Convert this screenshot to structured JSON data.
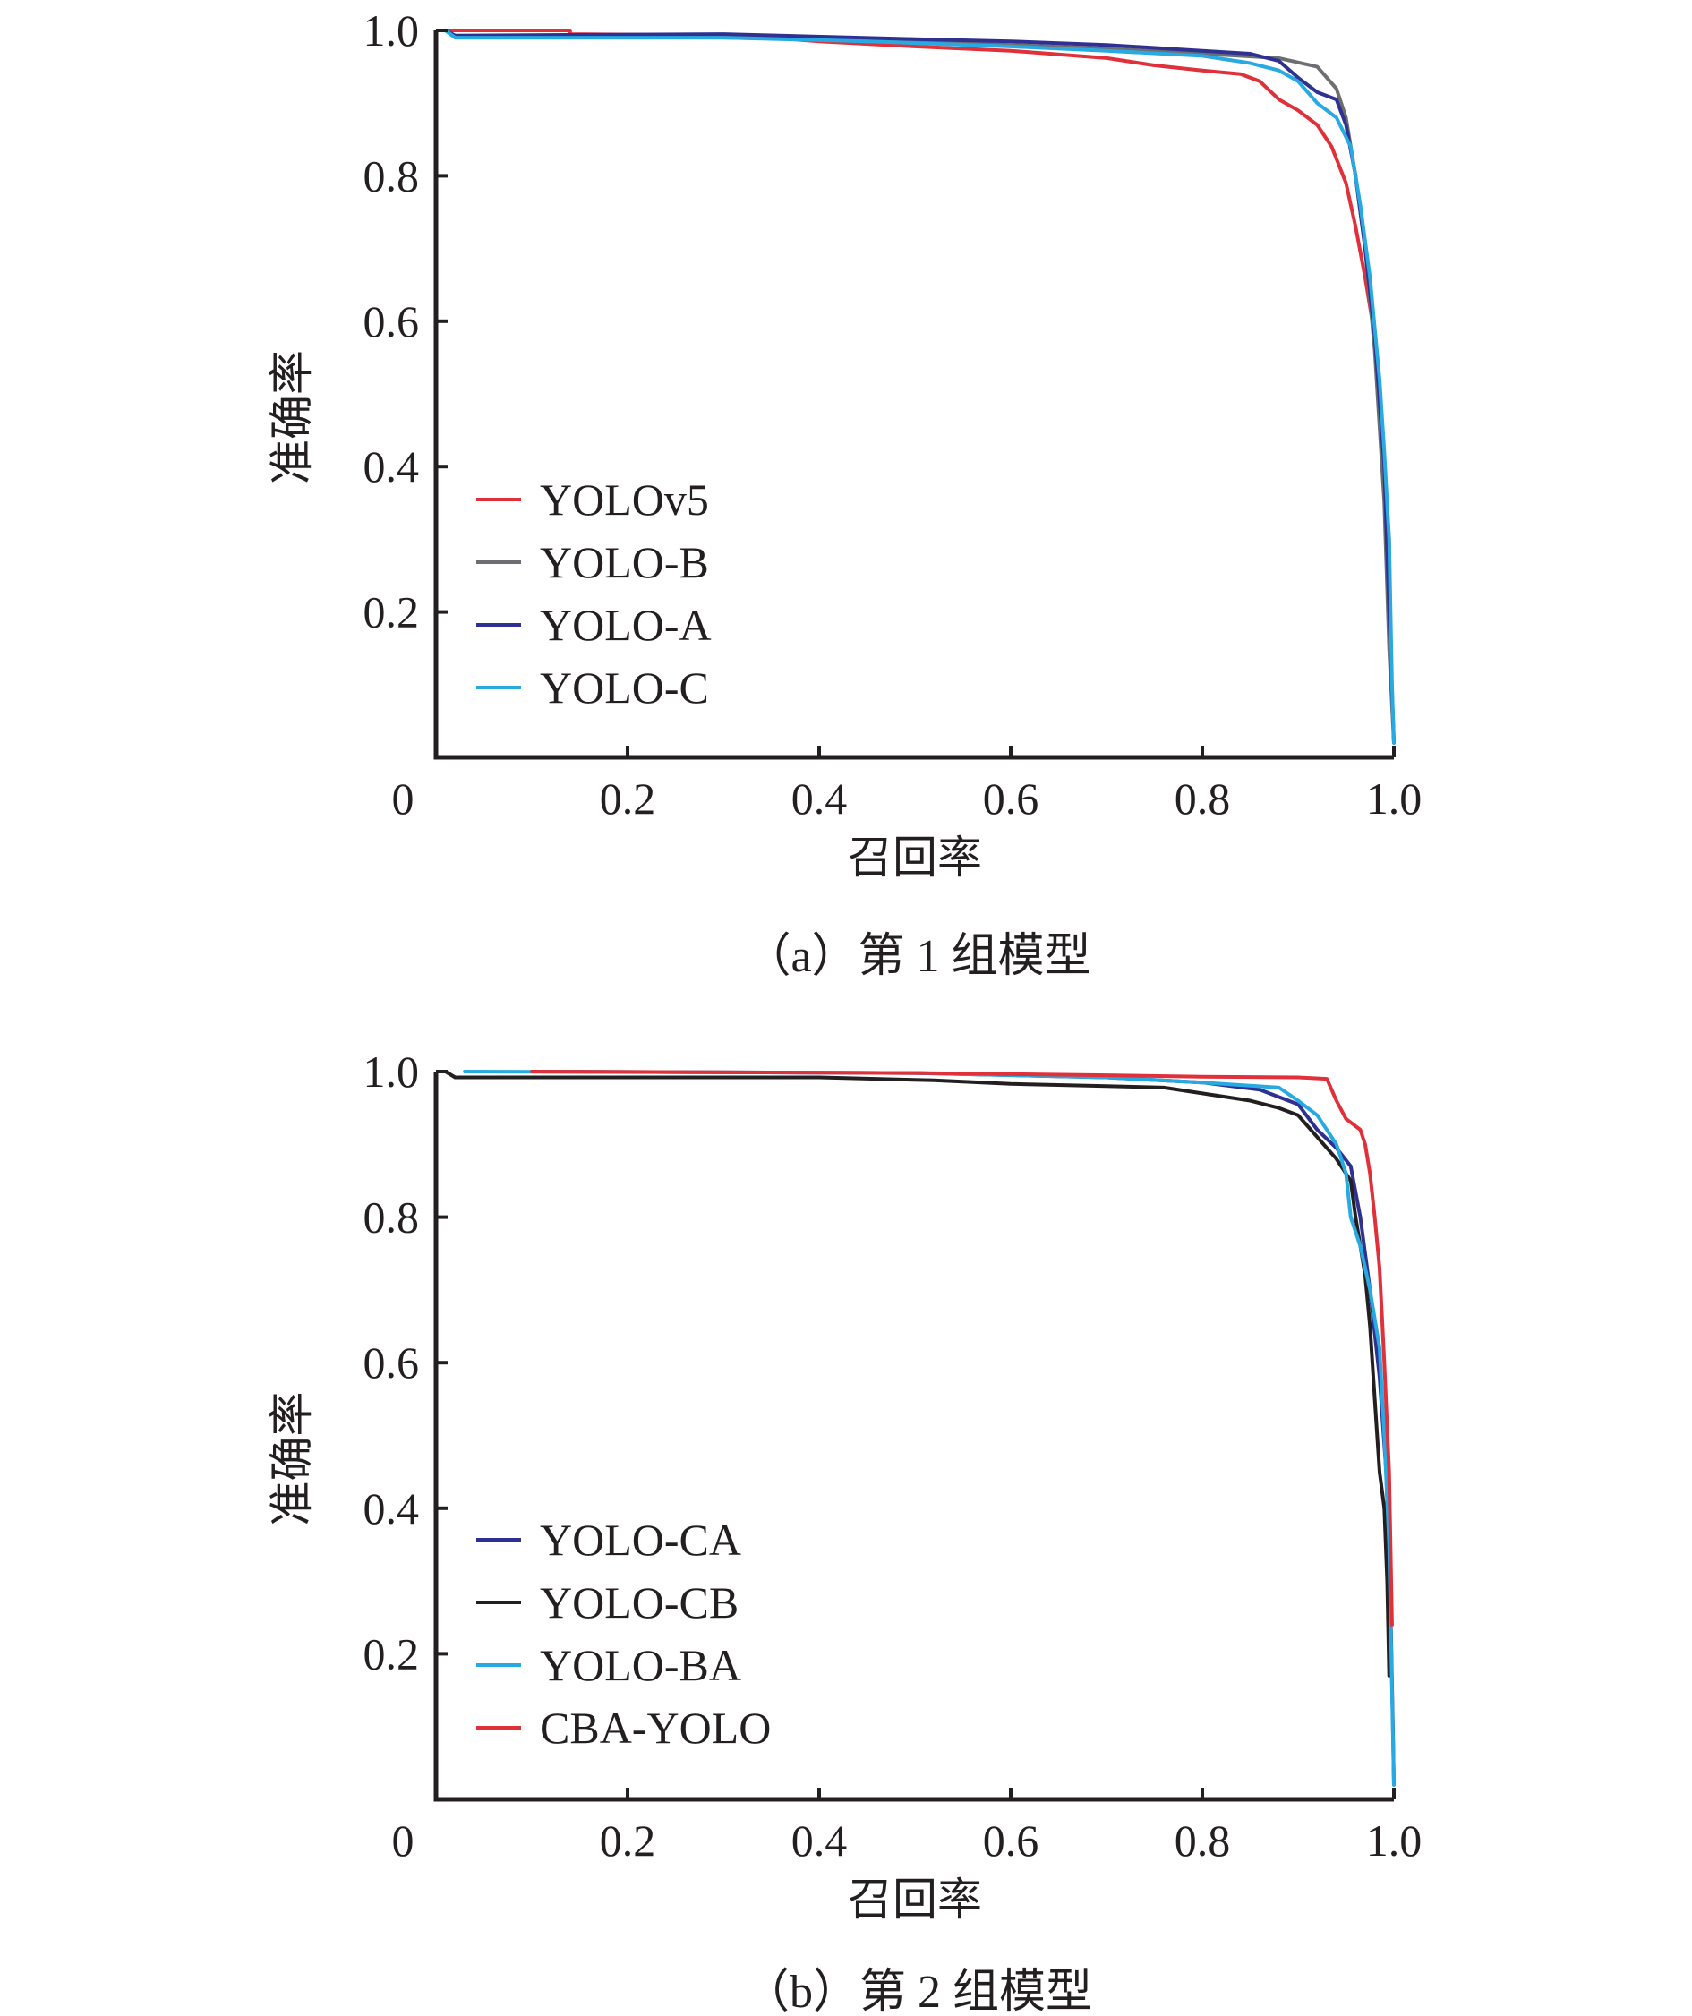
{
  "chart_data": [
    {
      "type": "line",
      "caption": "（a）第 1 组模型",
      "xlabel": "召回率",
      "ylabel": "准确率",
      "xlim": [
        0,
        1.0
      ],
      "ylim": [
        0,
        1.0
      ],
      "x_ticks": [
        0,
        0.2,
        0.4,
        0.6,
        0.8,
        1.0
      ],
      "x_tick_labels": [
        "0",
        "0.2",
        "0.4",
        "0.6",
        "0.8",
        "1.0"
      ],
      "y_ticks": [
        0.2,
        0.4,
        0.6,
        0.8,
        1.0
      ],
      "y_tick_labels": [
        "0.2",
        "0.4",
        "0.6",
        "0.8",
        "1.0"
      ],
      "legend": "left",
      "grid": false,
      "series": [
        {
          "name": "YOLOv5",
          "color": "#e0303a",
          "points": [
            [
              0.01,
              1.0
            ],
            [
              0.14,
              1.0
            ],
            [
              0.14,
              0.995
            ],
            [
              0.32,
              0.993
            ],
            [
              0.4,
              0.985
            ],
            [
              0.5,
              0.978
            ],
            [
              0.6,
              0.972
            ],
            [
              0.7,
              0.962
            ],
            [
              0.75,
              0.952
            ],
            [
              0.8,
              0.945
            ],
            [
              0.84,
              0.94
            ],
            [
              0.86,
              0.93
            ],
            [
              0.88,
              0.905
            ],
            [
              0.9,
              0.89
            ],
            [
              0.92,
              0.87
            ],
            [
              0.935,
              0.84
            ],
            [
              0.95,
              0.79
            ],
            [
              0.96,
              0.73
            ],
            [
              0.97,
              0.66
            ],
            [
              0.98,
              0.58
            ],
            [
              0.985,
              0.47
            ],
            [
              0.99,
              0.4
            ],
            [
              0.995,
              0.3
            ],
            [
              0.996,
              0.18
            ]
          ]
        },
        {
          "name": "YOLO-B",
          "color": "#6d6e71",
          "points": [
            [
              0.01,
              1.0
            ],
            [
              0.02,
              0.99
            ],
            [
              0.3,
              0.99
            ],
            [
              0.5,
              0.985
            ],
            [
              0.6,
              0.98
            ],
            [
              0.7,
              0.975
            ],
            [
              0.8,
              0.968
            ],
            [
              0.88,
              0.962
            ],
            [
              0.92,
              0.95
            ],
            [
              0.94,
              0.92
            ],
            [
              0.95,
              0.88
            ],
            [
              0.96,
              0.8
            ],
            [
              0.97,
              0.7
            ],
            [
              0.98,
              0.56
            ],
            [
              0.99,
              0.35
            ],
            [
              0.995,
              0.15
            ],
            [
              1.0,
              0.02
            ]
          ]
        },
        {
          "name": "YOLO-A",
          "color": "#2e3192",
          "points": [
            [
              0.01,
              1.0
            ],
            [
              0.02,
              0.993
            ],
            [
              0.3,
              0.995
            ],
            [
              0.5,
              0.988
            ],
            [
              0.6,
              0.985
            ],
            [
              0.7,
              0.98
            ],
            [
              0.8,
              0.972
            ],
            [
              0.85,
              0.968
            ],
            [
              0.88,
              0.958
            ],
            [
              0.9,
              0.935
            ],
            [
              0.92,
              0.915
            ],
            [
              0.94,
              0.905
            ],
            [
              0.95,
              0.87
            ],
            [
              0.96,
              0.8
            ],
            [
              0.97,
              0.7
            ],
            [
              0.98,
              0.58
            ],
            [
              0.99,
              0.4
            ],
            [
              0.995,
              0.2
            ],
            [
              1.0,
              0.02
            ]
          ]
        },
        {
          "name": "YOLO-C",
          "color": "#27aae1",
          "points": [
            [
              0.01,
              1.0
            ],
            [
              0.02,
              0.99
            ],
            [
              0.3,
              0.99
            ],
            [
              0.45,
              0.985
            ],
            [
              0.6,
              0.978
            ],
            [
              0.7,
              0.972
            ],
            [
              0.8,
              0.965
            ],
            [
              0.85,
              0.955
            ],
            [
              0.88,
              0.945
            ],
            [
              0.9,
              0.93
            ],
            [
              0.92,
              0.9
            ],
            [
              0.94,
              0.88
            ],
            [
              0.955,
              0.84
            ],
            [
              0.965,
              0.76
            ],
            [
              0.975,
              0.66
            ],
            [
              0.985,
              0.52
            ],
            [
              0.99,
              0.42
            ],
            [
              0.995,
              0.3
            ],
            [
              0.998,
              0.1
            ],
            [
              1.0,
              0.02
            ]
          ]
        }
      ]
    },
    {
      "type": "line",
      "caption": "（b）第 2 组模型",
      "xlabel": "召回率",
      "ylabel": "准确率",
      "xlim": [
        0,
        1.0
      ],
      "ylim": [
        0,
        1.0
      ],
      "x_ticks": [
        0,
        0.2,
        0.4,
        0.6,
        0.8,
        1.0
      ],
      "x_tick_labels": [
        "0",
        "0.2",
        "0.4",
        "0.6",
        "0.8",
        "1.0"
      ],
      "y_ticks": [
        0.2,
        0.4,
        0.6,
        0.8,
        1.0
      ],
      "y_tick_labels": [
        "0.2",
        "0.4",
        "0.6",
        "0.8",
        "1.0"
      ],
      "legend": "left",
      "grid": false,
      "series": [
        {
          "name": "YOLO-CA",
          "color": "#2e3192",
          "points": [
            [
              0.1,
              1.0
            ],
            [
              0.5,
              0.998
            ],
            [
              0.7,
              0.992
            ],
            [
              0.8,
              0.985
            ],
            [
              0.86,
              0.975
            ],
            [
              0.9,
              0.955
            ],
            [
              0.92,
              0.92
            ],
            [
              0.94,
              0.895
            ],
            [
              0.955,
              0.87
            ],
            [
              0.965,
              0.8
            ],
            [
              0.975,
              0.7
            ],
            [
              0.985,
              0.58
            ],
            [
              0.992,
              0.45
            ],
            [
              0.996,
              0.3
            ],
            [
              0.999,
              0.1
            ],
            [
              1.0,
              0.02
            ]
          ]
        },
        {
          "name": "YOLO-CB",
          "color": "#231f20",
          "points": [
            [
              0.01,
              1.0
            ],
            [
              0.02,
              0.992
            ],
            [
              0.4,
              0.992
            ],
            [
              0.52,
              0.988
            ],
            [
              0.6,
              0.983
            ],
            [
              0.7,
              0.98
            ],
            [
              0.76,
              0.978
            ],
            [
              0.8,
              0.97
            ],
            [
              0.85,
              0.96
            ],
            [
              0.88,
              0.95
            ],
            [
              0.9,
              0.94
            ],
            [
              0.92,
              0.91
            ],
            [
              0.94,
              0.88
            ],
            [
              0.955,
              0.85
            ],
            [
              0.96,
              0.8
            ],
            [
              0.97,
              0.72
            ],
            [
              0.975,
              0.65
            ],
            [
              0.98,
              0.55
            ],
            [
              0.985,
              0.45
            ],
            [
              0.99,
              0.4
            ],
            [
              0.993,
              0.3
            ],
            [
              0.995,
              0.17
            ]
          ]
        },
        {
          "name": "YOLO-BA",
          "color": "#27aae1",
          "points": [
            [
              0.03,
              1.0
            ],
            [
              0.5,
              0.998
            ],
            [
              0.7,
              0.992
            ],
            [
              0.8,
              0.985
            ],
            [
              0.88,
              0.978
            ],
            [
              0.9,
              0.96
            ],
            [
              0.92,
              0.94
            ],
            [
              0.94,
              0.9
            ],
            [
              0.95,
              0.86
            ],
            [
              0.955,
              0.8
            ],
            [
              0.965,
              0.76
            ],
            [
              0.975,
              0.7
            ],
            [
              0.985,
              0.62
            ],
            [
              0.99,
              0.5
            ],
            [
              0.995,
              0.35
            ],
            [
              1.0,
              0.02
            ]
          ]
        },
        {
          "name": "CBA-YOLO",
          "color": "#e0303a",
          "points": [
            [
              0.1,
              1.0
            ],
            [
              0.5,
              0.998
            ],
            [
              0.7,
              0.995
            ],
            [
              0.8,
              0.993
            ],
            [
              0.9,
              0.992
            ],
            [
              0.93,
              0.99
            ],
            [
              0.94,
              0.96
            ],
            [
              0.95,
              0.935
            ],
            [
              0.965,
              0.92
            ],
            [
              0.97,
              0.9
            ],
            [
              0.975,
              0.86
            ],
            [
              0.98,
              0.8
            ],
            [
              0.985,
              0.73
            ],
            [
              0.99,
              0.6
            ],
            [
              0.995,
              0.45
            ],
            [
              0.998,
              0.24
            ]
          ]
        }
      ]
    }
  ]
}
